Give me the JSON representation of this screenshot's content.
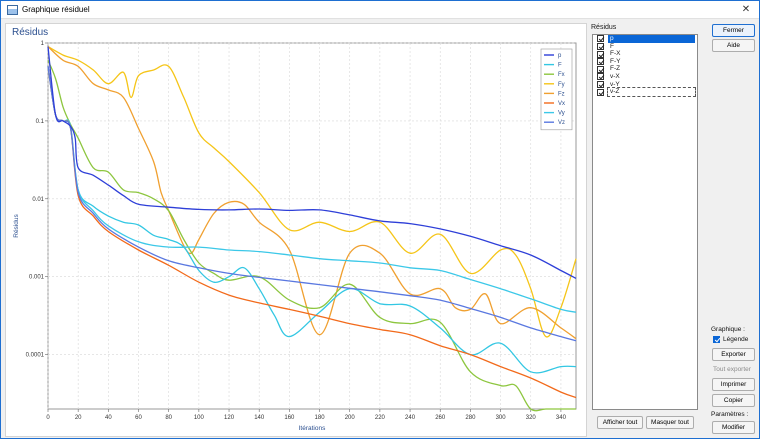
{
  "window": {
    "title": "Graphique résiduel",
    "close_glyph": "✕"
  },
  "chart_data": {
    "type": "line",
    "title": "Résidus",
    "xlabel": "Itérations",
    "ylabel": "Résidus",
    "xlim": [
      0,
      350
    ],
    "ylim": [
      2e-05,
      1
    ],
    "yscale": "log",
    "grid": true,
    "legend": "top-right",
    "x_ticks": [
      0,
      20,
      40,
      60,
      80,
      100,
      120,
      140,
      160,
      180,
      200,
      220,
      240,
      260,
      280,
      300,
      320,
      340
    ],
    "y_ticks": [
      {
        "value": 1,
        "label": "1"
      },
      {
        "value": 0.1,
        "label": "0.1"
      },
      {
        "value": 0.01,
        "label": "0.01"
      },
      {
        "value": 0.001,
        "label": "0.001"
      },
      {
        "value": 0.0001,
        "label": "0.0001"
      }
    ],
    "series": [
      {
        "name": "p",
        "color": "#2e3fd8",
        "x": [
          0,
          5,
          10,
          15,
          18,
          20,
          30,
          40,
          50,
          60,
          80,
          100,
          120,
          140,
          160,
          180,
          200,
          220,
          240,
          260,
          280,
          300,
          320,
          340,
          350
        ],
        "y": [
          0.9,
          0.12,
          0.1,
          0.085,
          0.06,
          0.025,
          0.02,
          0.015,
          0.011,
          0.0085,
          0.0078,
          0.0073,
          0.0072,
          0.0074,
          0.0071,
          0.0072,
          0.0062,
          0.0052,
          0.0048,
          0.0041,
          0.0033,
          0.0025,
          0.0019,
          0.0012,
          0.00095
        ]
      },
      {
        "name": "F",
        "color": "#33c7e3",
        "x": [
          0,
          5,
          10,
          15,
          20,
          30,
          40,
          50,
          60,
          70,
          80,
          90,
          100,
          110,
          120,
          130,
          140,
          150,
          160,
          180,
          200,
          220,
          240,
          260,
          280,
          300,
          320,
          340,
          350
        ],
        "y": [
          0.5,
          0.12,
          0.1,
          0.085,
          0.013,
          0.008,
          0.006,
          0.005,
          0.0046,
          0.0034,
          0.003,
          0.0024,
          0.0012,
          0.00085,
          0.001,
          0.0013,
          0.0007,
          0.00032,
          0.00017,
          0.00035,
          0.0007,
          0.00045,
          0.00042,
          0.00022,
          0.0001,
          0.00014,
          6e-05,
          7e-05,
          7e-05
        ]
      },
      {
        "name": "Fx",
        "color": "#8dc63f",
        "x": [
          0,
          5,
          10,
          15,
          20,
          30,
          40,
          50,
          60,
          70,
          80,
          90,
          100,
          110,
          120,
          140,
          160,
          180,
          200,
          220,
          240,
          260,
          280,
          300,
          310,
          320,
          330,
          340,
          345,
          350
        ],
        "y": [
          0.6,
          0.35,
          0.15,
          0.09,
          0.06,
          0.025,
          0.022,
          0.013,
          0.012,
          0.01,
          0.007,
          0.003,
          0.0015,
          0.0011,
          0.0009,
          0.001,
          0.0005,
          0.0004,
          0.0008,
          0.0003,
          0.00025,
          0.00026,
          6e-05,
          4e-05,
          4e-05,
          1.5e-05,
          2e-05,
          7e-06,
          9e-06,
          1.8e-05
        ]
      },
      {
        "name": "Fy",
        "color": "#f5c518",
        "x": [
          0,
          10,
          20,
          30,
          40,
          50,
          55,
          60,
          70,
          80,
          90,
          100,
          110,
          120,
          140,
          160,
          180,
          200,
          220,
          240,
          260,
          280,
          300,
          310,
          320,
          330,
          340,
          350
        ],
        "y": [
          0.9,
          0.7,
          0.6,
          0.45,
          0.3,
          0.42,
          0.2,
          0.38,
          0.45,
          0.5,
          0.2,
          0.07,
          0.045,
          0.03,
          0.012,
          0.004,
          0.005,
          0.0038,
          0.005,
          0.002,
          0.0035,
          0.0011,
          0.0022,
          0.0019,
          0.0007,
          0.00017,
          0.0004,
          0.0017
        ]
      },
      {
        "name": "Fz",
        "color": "#f0a030",
        "x": [
          0,
          10,
          20,
          30,
          40,
          50,
          60,
          70,
          75,
          80,
          90,
          95,
          100,
          110,
          120,
          130,
          140,
          160,
          180,
          200,
          220,
          240,
          260,
          270,
          280,
          290,
          300,
          320,
          340,
          350
        ],
        "y": [
          0.9,
          0.6,
          0.5,
          0.3,
          0.25,
          0.2,
          0.08,
          0.03,
          0.012,
          0.007,
          0.0025,
          0.002,
          0.003,
          0.0065,
          0.009,
          0.0085,
          0.005,
          0.0022,
          0.00018,
          0.002,
          0.002,
          0.0006,
          0.0007,
          0.0004,
          0.00038,
          0.0006,
          0.00025,
          0.0004,
          0.00022,
          0.00016
        ]
      },
      {
        "name": "Vx",
        "color": "#f26a1b",
        "x": [
          0,
          5,
          10,
          15,
          20,
          30,
          40,
          60,
          80,
          100,
          120,
          140,
          160,
          180,
          200,
          220,
          240,
          260,
          280,
          300,
          320,
          340,
          350
        ],
        "y": [
          0.5,
          0.12,
          0.1,
          0.08,
          0.011,
          0.006,
          0.0038,
          0.0022,
          0.0014,
          0.00085,
          0.00058,
          0.00046,
          0.00038,
          0.00031,
          0.00025,
          0.00021,
          0.00018,
          0.00013,
          0.0001,
          7e-05,
          5e-05,
          3.3e-05,
          2.8e-05
        ]
      },
      {
        "name": "Vy",
        "color": "#3cc8e8",
        "x": [
          0,
          5,
          10,
          15,
          20,
          30,
          40,
          60,
          80,
          100,
          120,
          140,
          160,
          180,
          200,
          220,
          240,
          260,
          280,
          300,
          320,
          340,
          350
        ],
        "y": [
          0.5,
          0.12,
          0.1,
          0.08,
          0.013,
          0.007,
          0.0045,
          0.0028,
          0.0024,
          0.0024,
          0.0022,
          0.0021,
          0.0019,
          0.0017,
          0.0016,
          0.0015,
          0.0013,
          0.0012,
          0.00092,
          0.0007,
          0.00052,
          0.00038,
          0.00035
        ]
      },
      {
        "name": "Vz",
        "color": "#5a78e0",
        "x": [
          0,
          5,
          10,
          15,
          20,
          30,
          40,
          60,
          80,
          100,
          120,
          140,
          160,
          180,
          200,
          220,
          240,
          260,
          280,
          300,
          320,
          340,
          350
        ],
        "y": [
          0.5,
          0.12,
          0.1,
          0.08,
          0.012,
          0.0065,
          0.0041,
          0.0024,
          0.0016,
          0.0013,
          0.0011,
          0.00098,
          0.00088,
          0.00079,
          0.00071,
          0.00064,
          0.00057,
          0.0005,
          0.00039,
          0.0003,
          0.00022,
          0.00017,
          0.00015
        ]
      }
    ]
  },
  "residuals_panel": {
    "header": "Résidus",
    "items": [
      "p",
      "F",
      "F-X",
      "F-Y",
      "F-Z",
      "v-X",
      "v-Y",
      "v-Z"
    ],
    "selected": "p",
    "focused": "v-Z"
  },
  "bottom_buttons": {
    "show_all": "Afficher tout",
    "hide_all": "Masquer tout"
  },
  "right_panel": {
    "close": "Fermer",
    "help": "Aide",
    "chart_section": "Graphique :",
    "legend_checkbox": "Légende",
    "legend_checked": true,
    "export": "Exporter",
    "export_all": "Tout exporter",
    "print": "Imprimer",
    "copy": "Copier",
    "settings_section": "Paramètres :",
    "modify": "Modifier"
  },
  "icons": {
    "app": "graph-window-icon",
    "close": "close-icon",
    "checkbox": "checkmark-icon"
  }
}
